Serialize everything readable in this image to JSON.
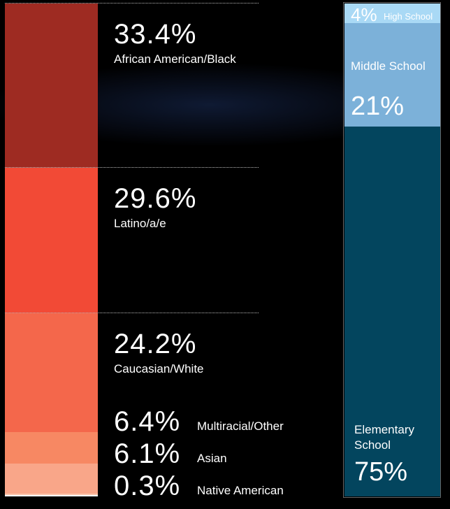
{
  "chart_data": [
    {
      "type": "stacked-bar",
      "series": [
        {
          "name": "African American/Black",
          "color": "#9e2b22",
          "values": [
            33.4
          ],
          "value_labels": [
            "33.4%"
          ]
        },
        {
          "name": "Latino/a/e",
          "color": "#f24a36",
          "values": [
            29.6
          ],
          "value_labels": [
            "29.6%"
          ]
        },
        {
          "name": "Caucasian/White",
          "color": "#f4674b",
          "values": [
            24.2
          ],
          "value_labels": [
            "24.2%"
          ]
        },
        {
          "name": "Multiracial/Other",
          "color": "#f78863",
          "values": [
            6.4
          ],
          "value_labels": [
            "6.4%"
          ]
        },
        {
          "name": "Asian",
          "color": "#f9a689",
          "values": [
            6.1
          ],
          "value_labels": [
            "6.1%"
          ]
        },
        {
          "name": "Native American",
          "color": "#fcc4ab",
          "values": [
            0.3
          ],
          "value_labels": [
            "0.3%"
          ]
        }
      ]
    },
    {
      "type": "stacked-bar",
      "series": [
        {
          "name": "High School",
          "color": "#a9d9f5",
          "values": [
            4
          ],
          "value_labels": [
            "4%"
          ]
        },
        {
          "name": "Middle School",
          "color": "#7cb1d9",
          "values": [
            21
          ],
          "value_labels": [
            "21%"
          ]
        },
        {
          "name": "Elementary School",
          "color": "#03455e",
          "values": [
            75
          ],
          "value_labels": [
            "75%"
          ]
        }
      ]
    }
  ]
}
